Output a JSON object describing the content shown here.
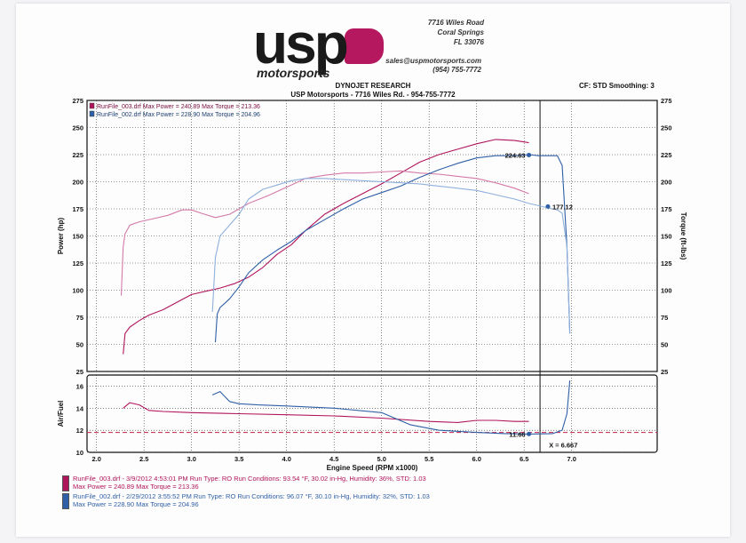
{
  "header": {
    "logo_word": "usp",
    "logo_sub": "motorsports",
    "address": [
      "7716 Wiles Road",
      "Coral Springs",
      "FL 33076"
    ],
    "email": "sales@uspmotorsports.com",
    "phone": "(954) 755-7772",
    "title_line1": "DYNOJET RESEARCH",
    "title_line2": "USP Motorsports - 7716 Wiles Rd. - 954-755-7772",
    "cf_smoothing": "CF: STD  Smoothing: 3"
  },
  "colors": {
    "run3": "#b0155c",
    "run2": "#2f5fa6",
    "run3_torque": "#d47aa8",
    "run2_torque": "#8db0dc"
  },
  "chart_data": [
    {
      "type": "line",
      "xlabel": "Engine Speed (RPM x1000)",
      "ylabel_left": "Power (hp)",
      "ylabel_right": "Torque (ft-lbs)",
      "xlim": [
        1.9,
        7.9
      ],
      "ylim": [
        25,
        275
      ],
      "x_ticks": [
        "2.0",
        "2.5",
        "3.0",
        "3.5",
        "4.0",
        "4.5",
        "5.0",
        "5.5",
        "6.0",
        "6.5",
        "7.0"
      ],
      "x_tick_values": [
        2.0,
        2.5,
        3.0,
        3.5,
        4.0,
        4.5,
        5.0,
        5.5,
        6.0,
        6.5,
        7.0
      ],
      "y_ticks": [
        25,
        50,
        75,
        100,
        125,
        150,
        175,
        200,
        225,
        250,
        275
      ],
      "grid": true,
      "legend": [
        "RunFile_003.drf Max Power = 240.89    Max Torque = 213.36",
        "RunFile_002.drf Max Power = 228.90    Max Torque = 204.96"
      ],
      "annotations": [
        {
          "text": "224.63",
          "x": 6.55,
          "y": 224.63
        },
        {
          "text": "177.12",
          "x": 6.75,
          "y": 177.12
        }
      ],
      "series": [
        {
          "name": "RunFile_003.drf Power",
          "color": "#b0155c",
          "x": [
            2.28,
            2.3,
            2.35,
            2.45,
            2.55,
            2.7,
            2.85,
            3.0,
            3.15,
            3.3,
            3.45,
            3.6,
            3.75,
            3.9,
            4.05,
            4.2,
            4.4,
            4.6,
            4.8,
            5.0,
            5.2,
            5.4,
            5.6,
            5.8,
            6.0,
            6.2,
            6.4,
            6.55
          ],
          "y": [
            41,
            60,
            66,
            72,
            77,
            82,
            89,
            96,
            99,
            102,
            106,
            112,
            121,
            133,
            142,
            155,
            170,
            180,
            189,
            198,
            208,
            218,
            225,
            230,
            235,
            239,
            238,
            236
          ]
        },
        {
          "name": "RunFile_003.drf Torque",
          "color": "#d47aa8",
          "x": [
            2.26,
            2.28,
            2.3,
            2.35,
            2.45,
            2.6,
            2.75,
            2.9,
            3.0,
            3.1,
            3.25,
            3.4,
            3.6,
            3.8,
            4.0,
            4.2,
            4.4,
            4.6,
            4.8,
            5.0,
            5.2,
            5.4,
            5.6,
            5.8,
            6.0,
            6.2,
            6.4,
            6.55
          ],
          "y": [
            95,
            140,
            152,
            160,
            163,
            166,
            169,
            174,
            174,
            171,
            167,
            170,
            180,
            187,
            195,
            203,
            206,
            208,
            208,
            209,
            210,
            208,
            207,
            205,
            203,
            199,
            194,
            189
          ]
        },
        {
          "name": "RunFile_002.drf Power",
          "color": "#2f5fa6",
          "x": [
            3.25,
            3.27,
            3.3,
            3.4,
            3.5,
            3.6,
            3.75,
            3.9,
            4.05,
            4.2,
            4.4,
            4.6,
            4.8,
            5.0,
            5.2,
            5.4,
            5.6,
            5.8,
            6.0,
            6.2,
            6.4,
            6.55,
            6.65,
            6.75,
            6.85,
            6.9,
            6.95,
            6.98
          ],
          "y": [
            52,
            78,
            84,
            92,
            103,
            116,
            128,
            137,
            145,
            155,
            165,
            175,
            184,
            190,
            196,
            204,
            211,
            217,
            222,
            224,
            224,
            225,
            224,
            224,
            224,
            215,
            140,
            60
          ]
        },
        {
          "name": "RunFile_002.drf Torque",
          "color": "#8db0dc",
          "x": [
            3.22,
            3.25,
            3.3,
            3.4,
            3.5,
            3.6,
            3.75,
            3.9,
            4.05,
            4.2,
            4.4,
            4.6,
            4.8,
            5.0,
            5.2,
            5.4,
            5.6,
            5.8,
            6.0,
            6.2,
            6.4,
            6.55,
            6.7,
            6.85,
            6.9,
            6.95,
            6.98
          ],
          "y": [
            80,
            130,
            150,
            160,
            170,
            184,
            193,
            197,
            201,
            203,
            203,
            202,
            201,
            200,
            199,
            198,
            196,
            194,
            192,
            188,
            184,
            180,
            177,
            174,
            171,
            140,
            60
          ]
        }
      ]
    },
    {
      "type": "line",
      "ylabel": "Air/Fuel",
      "xlim": [
        1.9,
        7.9
      ],
      "ylim": [
        10,
        17
      ],
      "y_ticks": [
        10,
        12,
        14,
        16
      ],
      "grid": true,
      "reference_y": 11.8,
      "annotations": [
        {
          "text": "11.66",
          "x": 6.55,
          "y": 11.66
        },
        {
          "text": "X = 6.667",
          "x": 6.667,
          "y": 10.6
        }
      ],
      "series": [
        {
          "name": "RunFile_003.drf AFR",
          "color": "#b0155c",
          "x": [
            2.28,
            2.35,
            2.45,
            2.55,
            2.7,
            3.0,
            3.5,
            4.0,
            4.5,
            5.0,
            5.5,
            5.8,
            6.0,
            6.2,
            6.4,
            6.55
          ],
          "y": [
            14.0,
            14.5,
            14.3,
            13.8,
            13.7,
            13.6,
            13.5,
            13.4,
            13.3,
            13.1,
            12.8,
            12.7,
            12.9,
            12.9,
            12.8,
            12.8
          ]
        },
        {
          "name": "RunFile_002.drf AFR",
          "color": "#2f5fa6",
          "x": [
            3.22,
            3.3,
            3.4,
            3.5,
            3.7,
            4.0,
            4.5,
            5.0,
            5.3,
            5.6,
            6.0,
            6.3,
            6.55,
            6.8,
            6.9,
            6.95,
            6.98
          ],
          "y": [
            15.2,
            15.5,
            14.6,
            14.4,
            14.3,
            14.2,
            14.0,
            13.6,
            12.5,
            12.0,
            11.8,
            11.7,
            11.66,
            11.7,
            12.0,
            13.5,
            16.5
          ]
        }
      ]
    }
  ],
  "run_info": [
    {
      "line1": "RunFile_003.drf - 3/9/2012 4:53:01 PM  Run Type: RO  Run Conditions: 93.54 °F, 30.02 in-Hg,  Humidity:  36%, STD: 1.03",
      "line2": "Max Power = 240.89  Max Torque = 213.36",
      "color": "#b0155c"
    },
    {
      "line1": "RunFile_002.drf - 2/29/2012 3:55:52 PM  Run Type: RO  Run Conditions: 96.07 °F, 30.10 in-Hg,  Humidity:  32%, STD: 1.03",
      "line2": "Max Power = 228.90  Max Torque = 204.96",
      "color": "#2f5fa6"
    }
  ]
}
